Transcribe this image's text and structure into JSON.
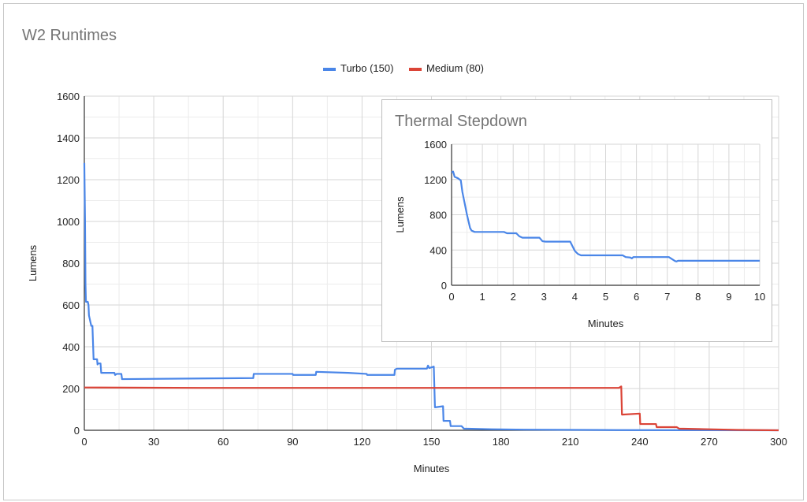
{
  "chart_data": [
    {
      "type": "line",
      "title": "W2 Runtimes",
      "xlabel": "Minutes",
      "ylabel": "Lumens",
      "xlim": [
        0,
        300
      ],
      "ylim": [
        0,
        1600
      ],
      "xticks": [
        0,
        30,
        60,
        90,
        120,
        150,
        180,
        210,
        240,
        270,
        300
      ],
      "yticks": [
        0,
        200,
        400,
        600,
        800,
        1000,
        1200,
        1400,
        1600
      ],
      "grid": true,
      "legend": "top",
      "series": [
        {
          "name": "Turbo (150)",
          "color": "#4a86e8",
          "points": [
            [
              0,
              1280
            ],
            [
              0.3,
              1000
            ],
            [
              0.5,
              700
            ],
            [
              0.7,
              615
            ],
            [
              1.5,
              615
            ],
            [
              1.8,
              600
            ],
            [
              2,
              550
            ],
            [
              3,
              500
            ],
            [
              3.5,
              500
            ],
            [
              4,
              340
            ],
            [
              5.5,
              340
            ],
            [
              5.7,
              315
            ],
            [
              6,
              320
            ],
            [
              7,
              320
            ],
            [
              7.3,
              275
            ],
            [
              13,
              275
            ],
            [
              13.3,
              265
            ],
            [
              14,
              270
            ],
            [
              16,
              270
            ],
            [
              16.3,
              245
            ],
            [
              73,
              250
            ],
            [
              73.2,
              270
            ],
            [
              90,
              270
            ],
            [
              90.2,
              265
            ],
            [
              100,
              265
            ],
            [
              100.2,
              280
            ],
            [
              114,
              275
            ],
            [
              122,
              270
            ],
            [
              122.2,
              265
            ],
            [
              134,
              265
            ],
            [
              134.2,
              290
            ],
            [
              135,
              295
            ],
            [
              148,
              295
            ],
            [
              148.5,
              310
            ],
            [
              149,
              298
            ],
            [
              151,
              305
            ],
            [
              151.5,
              110
            ],
            [
              155,
              115
            ],
            [
              155.2,
              45
            ],
            [
              158,
              45
            ],
            [
              158.3,
              20
            ],
            [
              163,
              20
            ],
            [
              164,
              8
            ],
            [
              176,
              5
            ],
            [
              190,
              3
            ],
            [
              230,
              1
            ],
            [
              300,
              0
            ]
          ]
        },
        {
          "name": "Medium (80)",
          "color": "#db4437",
          "points": [
            [
              0,
              205
            ],
            [
              50,
              203
            ],
            [
              231,
              203
            ],
            [
              232,
              210
            ],
            [
              232.3,
              75
            ],
            [
              240,
              80
            ],
            [
              240.2,
              30
            ],
            [
              247,
              30
            ],
            [
              247.3,
              15
            ],
            [
              256,
              15
            ],
            [
              257,
              8
            ],
            [
              270,
              5
            ],
            [
              282,
              2
            ],
            [
              300,
              0
            ]
          ]
        }
      ]
    },
    {
      "type": "line",
      "title": "Thermal Stepdown",
      "xlabel": "Minutes",
      "ylabel": "Lumens",
      "xlim": [
        0,
        10
      ],
      "ylim": [
        0,
        1600
      ],
      "xticks": [
        0,
        1,
        2,
        3,
        4,
        5,
        6,
        7,
        8,
        9,
        10
      ],
      "yticks": [
        0,
        400,
        800,
        1200,
        1600
      ],
      "grid": true,
      "series": [
        {
          "name": "Turbo (150)",
          "color": "#4a86e8",
          "points": [
            [
              0,
              1280
            ],
            [
              0.05,
              1290
            ],
            [
              0.1,
              1230
            ],
            [
              0.2,
              1215
            ],
            [
              0.3,
              1190
            ],
            [
              0.35,
              1060
            ],
            [
              0.5,
              800
            ],
            [
              0.6,
              650
            ],
            [
              0.65,
              620
            ],
            [
              0.75,
              605
            ],
            [
              1.7,
              605
            ],
            [
              1.8,
              590
            ],
            [
              2.1,
              590
            ],
            [
              2.2,
              555
            ],
            [
              2.3,
              540
            ],
            [
              2.85,
              540
            ],
            [
              2.95,
              500
            ],
            [
              3.05,
              495
            ],
            [
              3.85,
              495
            ],
            [
              4,
              390
            ],
            [
              4.1,
              355
            ],
            [
              4.2,
              340
            ],
            [
              5.55,
              340
            ],
            [
              5.65,
              320
            ],
            [
              5.8,
              315
            ],
            [
              5.85,
              305
            ],
            [
              5.9,
              320
            ],
            [
              7.05,
              320
            ],
            [
              7.25,
              275
            ],
            [
              7.3,
              270
            ],
            [
              7.35,
              278
            ],
            [
              10,
              278
            ]
          ]
        }
      ]
    }
  ]
}
